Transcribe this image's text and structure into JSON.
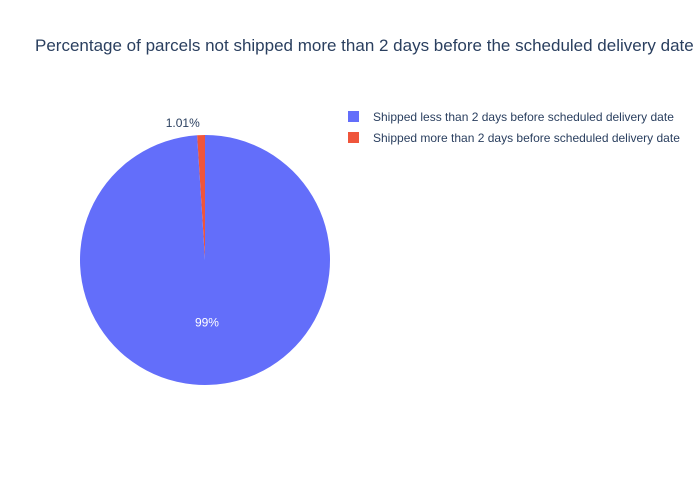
{
  "chart_data": {
    "type": "pie",
    "title": "Percentage of parcels not shipped more than 2 days before the scheduled delivery date",
    "categories": [
      "Shipped less than 2 days before scheduled delivery date",
      "Shipped more than 2 days before scheduled delivery date"
    ],
    "values": [
      98.99,
      1.01
    ],
    "labels": [
      "99%",
      "1.01%"
    ],
    "colors": [
      "#636efa",
      "#ef553b"
    ],
    "legend_position": "top-right"
  }
}
